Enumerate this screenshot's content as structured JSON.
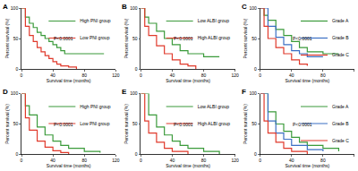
{
  "chart_data": [
    {
      "type": "line",
      "title": "A",
      "xlabel": "Survival time (months)",
      "ylabel": "Percent survival (%)",
      "xlim": [
        0,
        120
      ],
      "xticks": [
        0,
        40,
        80,
        120
      ],
      "ylim": [
        0,
        100
      ],
      "yticks": [
        0,
        50,
        100
      ],
      "legend": "upper right",
      "annotations": [
        "P<0.0001"
      ],
      "line_style": "step",
      "series": [
        {
          "name": "High PNI group",
          "color": "#3a9a3a",
          "x": [
            0,
            5,
            10,
            15,
            20,
            25,
            30,
            35,
            40,
            45,
            50,
            55,
            105
          ],
          "values": [
            100,
            85,
            75,
            68,
            60,
            55,
            50,
            45,
            40,
            35,
            30,
            25,
            25
          ]
        },
        {
          "name": "Low PNI group",
          "color": "#e0392b",
          "x": [
            0,
            5,
            10,
            15,
            20,
            25,
            30,
            35,
            40,
            45,
            50,
            60,
            70
          ],
          "values": [
            100,
            70,
            55,
            45,
            35,
            28,
            22,
            17,
            12,
            8,
            5,
            3,
            0
          ]
        }
      ]
    },
    {
      "type": "line",
      "title": "B",
      "xlabel": "Survival time (months)",
      "ylabel": "Percent survival (%)",
      "xlim": [
        0,
        120
      ],
      "xticks": [
        0,
        40,
        80,
        120
      ],
      "ylim": [
        0,
        100
      ],
      "yticks": [
        0,
        50,
        100
      ],
      "legend": "upper right",
      "annotations": [
        "P<0.0001"
      ],
      "line_style": "step",
      "series": [
        {
          "name": "Low ALBI group",
          "color": "#3a9a3a",
          "x": [
            0,
            5,
            10,
            20,
            30,
            40,
            50,
            60,
            80,
            100
          ],
          "values": [
            100,
            85,
            75,
            62,
            50,
            40,
            30,
            25,
            20,
            20
          ]
        },
        {
          "name": "High ALBI group",
          "color": "#e0392b",
          "x": [
            0,
            5,
            10,
            20,
            30,
            40,
            50,
            60,
            70
          ],
          "values": [
            100,
            70,
            55,
            38,
            25,
            15,
            8,
            5,
            0
          ]
        }
      ]
    },
    {
      "type": "line",
      "title": "C",
      "xlabel": "Survival time (months)",
      "ylabel": "Percent survival (%)",
      "xlim": [
        0,
        120
      ],
      "xticks": [
        0,
        40,
        80,
        120
      ],
      "ylim": [
        0,
        100
      ],
      "yticks": [
        0,
        50,
        100
      ],
      "legend": "upper right",
      "annotations": [
        "P<0.0001"
      ],
      "line_style": "step",
      "series": [
        {
          "name": "Grade A",
          "color": "#3a9a3a",
          "x": [
            0,
            5,
            10,
            20,
            30,
            40,
            50,
            60,
            80,
            100
          ],
          "values": [
            100,
            88,
            80,
            65,
            55,
            45,
            35,
            28,
            25,
            25
          ]
        },
        {
          "name": "Grade B",
          "color": "#3b6fc4",
          "x": [
            0,
            10,
            20,
            30,
            40,
            50,
            60,
            80
          ],
          "values": [
            100,
            70,
            52,
            40,
            30,
            25,
            20,
            20
          ]
        },
        {
          "name": "Grade C",
          "color": "#e0392b",
          "x": [
            0,
            5,
            10,
            20,
            30,
            40,
            50,
            60
          ],
          "values": [
            100,
            70,
            50,
            35,
            25,
            15,
            8,
            5
          ]
        }
      ]
    },
    {
      "type": "line",
      "title": "D",
      "xlabel": "Survival time (months)",
      "ylabel": "Percent survival (%)",
      "xlim": [
        0,
        120
      ],
      "xticks": [
        0,
        40,
        80,
        120
      ],
      "ylim": [
        0,
        100
      ],
      "yticks": [
        0,
        50,
        100
      ],
      "legend": "upper right",
      "annotations": [
        "P<0.0001"
      ],
      "line_style": "step",
      "series": [
        {
          "name": "High PNI group",
          "color": "#3a9a3a",
          "x": [
            0,
            5,
            10,
            20,
            30,
            40,
            50,
            60,
            80,
            100
          ],
          "values": [
            100,
            80,
            65,
            45,
            32,
            22,
            15,
            10,
            5,
            3
          ]
        },
        {
          "name": "Low PNI group",
          "color": "#e0392b",
          "x": [
            0,
            5,
            10,
            20,
            30,
            40,
            50,
            60
          ],
          "values": [
            100,
            60,
            40,
            22,
            12,
            6,
            3,
            0
          ]
        }
      ]
    },
    {
      "type": "line",
      "title": "E",
      "xlabel": "Survival time (months)",
      "ylabel": "Percent survival (%)",
      "xlim": [
        0,
        120
      ],
      "xticks": [
        0,
        40,
        80,
        120
      ],
      "ylim": [
        0,
        100
      ],
      "yticks": [
        0,
        50,
        100
      ],
      "legend": "upper right",
      "annotations": [
        "P<0.0001"
      ],
      "line_style": "step",
      "series": [
        {
          "name": "Low ALBI group",
          "color": "#3a9a3a",
          "x": [
            0,
            10,
            20,
            30,
            40,
            50,
            60,
            80,
            100
          ],
          "values": [
            100,
            65,
            45,
            32,
            22,
            15,
            10,
            5,
            0
          ]
        },
        {
          "name": "High ALBI group",
          "color": "#e0392b",
          "x": [
            0,
            5,
            10,
            20,
            30,
            40,
            60
          ],
          "values": [
            100,
            55,
            35,
            20,
            10,
            5,
            0
          ]
        }
      ]
    },
    {
      "type": "line",
      "title": "F",
      "xlabel": "Survival time (months)",
      "ylabel": "Percent survival (%)",
      "xlim": [
        0,
        120
      ],
      "xticks": [
        0,
        40,
        80,
        120
      ],
      "ylim": [
        0,
        100
      ],
      "yticks": [
        0,
        50,
        100
      ],
      "legend": "upper right",
      "annotations": [
        "P<0.0001"
      ],
      "line_style": "step",
      "series": [
        {
          "name": "Grade A",
          "color": "#3a9a3a",
          "x": [
            0,
            10,
            20,
            30,
            40,
            50,
            60,
            80,
            100
          ],
          "values": [
            100,
            70,
            50,
            38,
            28,
            20,
            15,
            10,
            5
          ]
        },
        {
          "name": "Grade B",
          "color": "#3b6fc4",
          "x": [
            0,
            10,
            20,
            30,
            40,
            60,
            80
          ],
          "values": [
            100,
            55,
            35,
            25,
            15,
            8,
            5
          ]
        },
        {
          "name": "Grade C",
          "color": "#e0392b",
          "x": [
            0,
            5,
            10,
            20,
            30,
            40,
            60
          ],
          "values": [
            100,
            55,
            35,
            20,
            10,
            5,
            0
          ]
        }
      ]
    }
  ]
}
